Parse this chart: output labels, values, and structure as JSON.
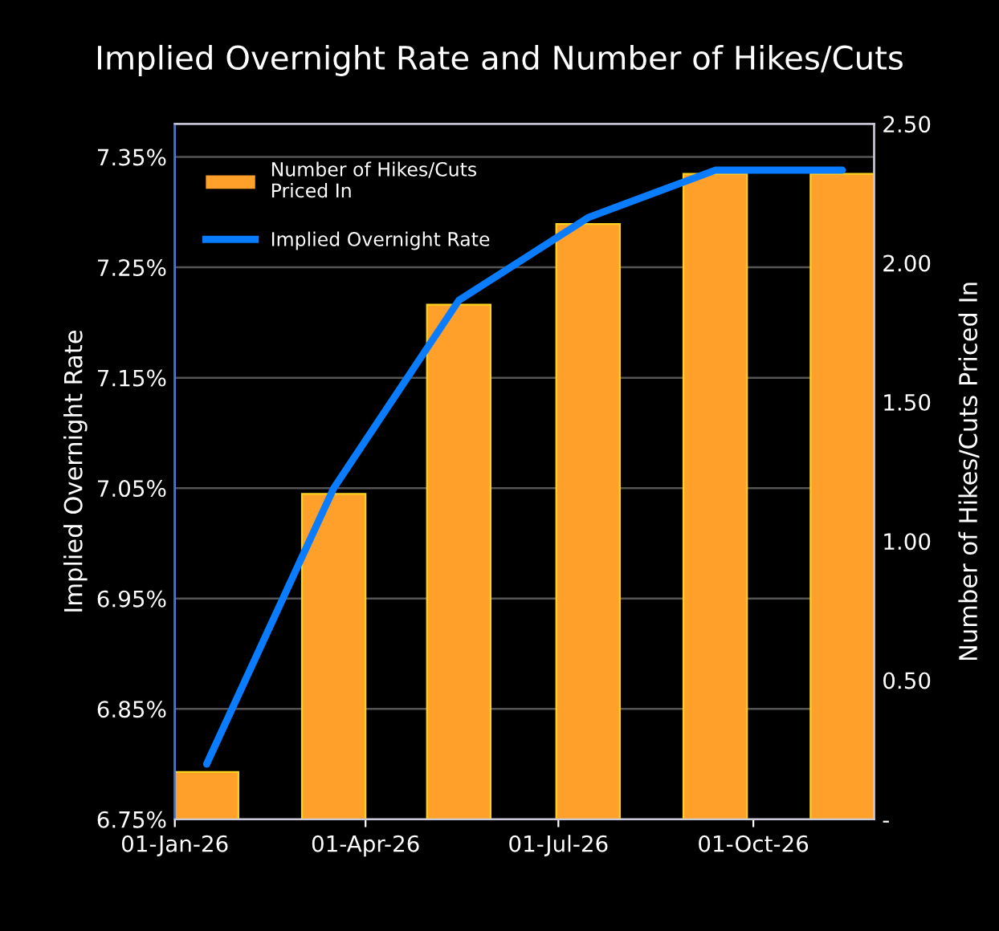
{
  "chart_data": {
    "type": "bar",
    "title": "Implied Overnight Rate and Number of Hikes/Cuts",
    "ylabel": "Implied Overnight Rate",
    "y2label": "Number of Hikes/Cuts Priced In",
    "x": [
      "2026-01-16",
      "2026-03-17",
      "2026-05-15",
      "2026-07-15",
      "2026-09-13",
      "2026-11-12"
    ],
    "series": [
      {
        "name": "Number of Hikes/Cuts\nPriced In",
        "axis": "y2",
        "color": "#ffa02a",
        "values": [
          0.17,
          1.17,
          1.85,
          2.14,
          2.32,
          2.32
        ]
      },
      {
        "name": "Implied Overnight Rate",
        "type": "line",
        "axis": "y",
        "color": "#0a7cff",
        "values": [
          6.8,
          7.05,
          7.22,
          7.295,
          7.338,
          7.338
        ]
      }
    ],
    "xlim": [
      "2026-01-01",
      "2026-11-27"
    ],
    "xticks": [
      {
        "value": "2026-01-01",
        "label": "01-Jan-26"
      },
      {
        "value": "2026-04-01",
        "label": "01-Apr-26"
      },
      {
        "value": "2026-07-01",
        "label": "01-Jul-26"
      },
      {
        "value": "2026-10-01",
        "label": "01-Oct-26"
      }
    ],
    "ylim": [
      6.75,
      7.38
    ],
    "yticks": [
      {
        "value": 6.75,
        "label": "6.75%"
      },
      {
        "value": 6.85,
        "label": "6.85%"
      },
      {
        "value": 6.95,
        "label": "6.95%"
      },
      {
        "value": 7.05,
        "label": "7.05%"
      },
      {
        "value": 7.15,
        "label": "7.15%"
      },
      {
        "value": 7.25,
        "label": "7.25%"
      },
      {
        "value": 7.35,
        "label": "7.35%"
      }
    ],
    "y2lim": [
      0,
      2.5
    ],
    "y2ticks": [
      {
        "value": 0,
        "label": "-"
      },
      {
        "value": 0.5,
        "label": "0.50"
      },
      {
        "value": 1.0,
        "label": "1.00"
      },
      {
        "value": 1.5,
        "label": "1.50"
      },
      {
        "value": 2.0,
        "label": "2.00"
      },
      {
        "value": 2.5,
        "label": "2.50"
      }
    ],
    "grid": "y",
    "legend": "top left",
    "marker": "none",
    "line_style": "solid"
  }
}
